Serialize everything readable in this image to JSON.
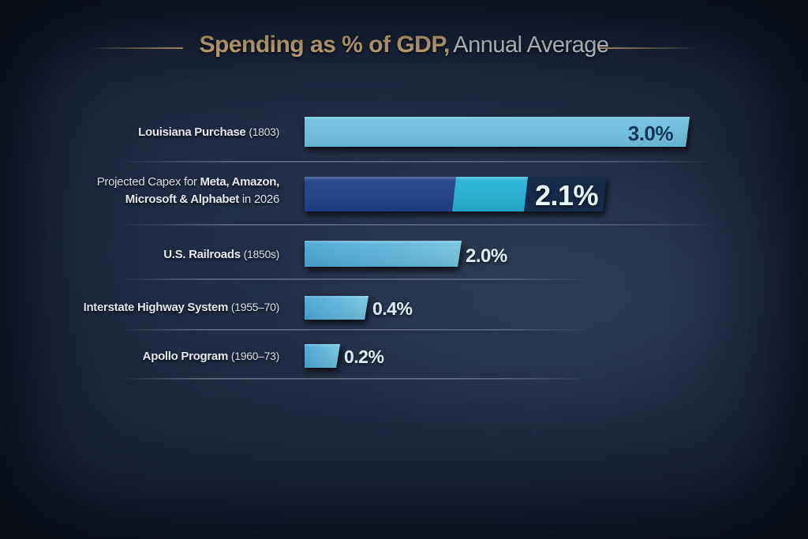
{
  "chart_data": {
    "type": "bar",
    "orientation": "horizontal",
    "title_emphasis": "Spending as % of GDP,",
    "title_rest": "Annual Average",
    "categories": [
      {
        "name": "Louisiana Purchase",
        "period": "(1803)"
      },
      {
        "prefix": "Projected Capex for",
        "name": "Meta, Amazon,",
        "name2": "Microsoft & Alphabet",
        "period": "in 2026"
      },
      {
        "name": "U.S. Railroads",
        "period": "(1850s)"
      },
      {
        "name": "Interstate Highway System",
        "period": "(1955–70)"
      },
      {
        "name": "Apollo Program",
        "period": "(1960–73)"
      }
    ],
    "values": [
      3.0,
      2.1,
      2.0,
      0.4,
      0.2
    ],
    "value_labels": [
      "3.0%",
      "2.1%",
      "2.0%",
      "0.4%",
      "0.2%"
    ],
    "highlighted_index": 1,
    "xlabel": "",
    "ylabel": "",
    "grid": true,
    "legend": "none"
  },
  "colors": {
    "title_accent": "#e3c28f",
    "bar": "#6fc3df",
    "bar_dark": "#4aa3d2",
    "highlight_bar": "#213f8a",
    "highlight_accent": "#25b1d6",
    "highlight_label_box": "#12294a",
    "label_text": "#dbe8ef",
    "inside_label_text": "#16365c"
  }
}
